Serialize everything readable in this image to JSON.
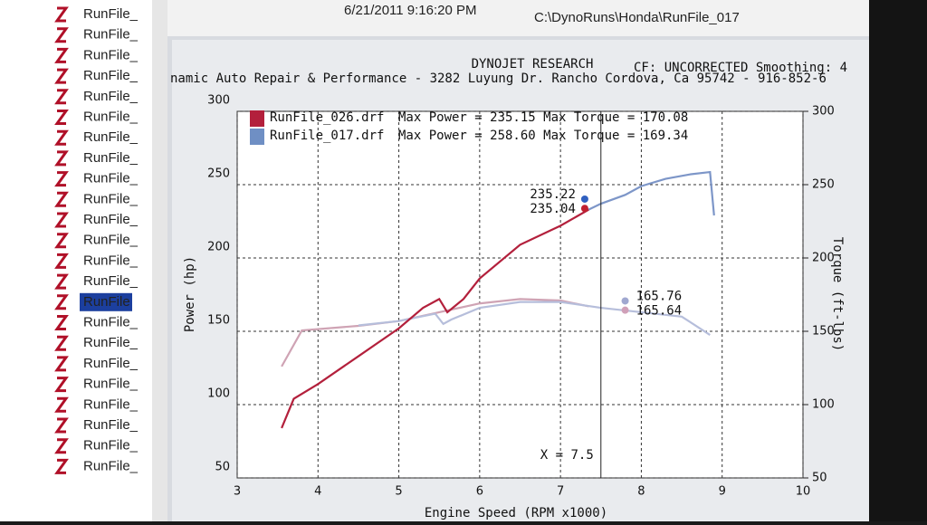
{
  "sidebar": {
    "items": [
      "RunFile_",
      "RunFile_",
      "RunFile_",
      "RunFile_",
      "RunFile_",
      "RunFile_",
      "RunFile_",
      "RunFile_",
      "RunFile_",
      "RunFile_",
      "RunFile_",
      "RunFile_",
      "RunFile_",
      "RunFile_",
      "RunFile",
      "RunFile_",
      "RunFile_",
      "RunFile_",
      "RunFile_",
      "RunFile_",
      "RunFile_",
      "RunFile_",
      "RunFile_"
    ],
    "selected": 14
  },
  "top_row": [
    "6/21/2011 9:16:20 PM",
    "C:\\DynoRuns\\Honda\\RunFile_017"
  ],
  "header": {
    "brand": "DYNOJET RESEARCH",
    "settings": "CF: UNCORRECTED  Smoothing: 4",
    "shop": "namic Auto Repair & Performance  - 3282 Luyung Dr. Rancho Cordova, Ca 95742 - 916-852-6"
  },
  "chart_data": {
    "type": "line",
    "x_label": "Engine Speed (RPM x1000)",
    "y_label": "Power (hp)",
    "y2_label": "Torque (ft-lbs)",
    "xlim": [
      3,
      10
    ],
    "xticks": [
      3,
      4,
      5,
      6,
      7,
      8,
      9,
      10
    ],
    "ylim": [
      50,
      300
    ],
    "yticks": [
      50,
      100,
      150,
      200,
      250,
      300
    ],
    "y2lim": [
      50,
      300
    ],
    "y2ticks": [
      50,
      100,
      150,
      200,
      250,
      300
    ],
    "grid": true,
    "legend": [
      {
        "name": "RunFile_026.drf",
        "detail": "Max Power = 235.15 Max Torque = 170.08",
        "color": "#b3203c"
      },
      {
        "name": "RunFile_017.drf",
        "detail": "Max Power = 258.60 Max Torque = 169.34",
        "color": "#6f8fc4"
      }
    ],
    "series": [
      {
        "name": "RunFile_026.drf power",
        "color": "#b3203c",
        "x": [
          3.55,
          3.7,
          4.0,
          4.5,
          5.0,
          5.3,
          5.5,
          5.6,
          5.8,
          6.0,
          6.5,
          7.0,
          7.35
        ],
        "values": [
          84,
          104,
          114,
          133,
          152,
          166,
          172,
          163,
          172,
          186,
          209,
          222,
          233
        ]
      },
      {
        "name": "RunFile_017.drf power",
        "color": "#7d96c8",
        "x": [
          7.35,
          7.5,
          7.8,
          8.0,
          8.3,
          8.6,
          8.85,
          8.9
        ],
        "values": [
          233,
          237,
          243,
          249,
          254,
          257,
          258.6,
          229
        ]
      },
      {
        "name": "RunFile_026.drf torque",
        "color": "#cfa3b4",
        "axis": "y2",
        "x": [
          3.55,
          3.8,
          4.5,
          5.0,
          5.5,
          6.0,
          6.5,
          7.0,
          7.35
        ],
        "values": [
          126,
          150.6,
          153.7,
          157,
          163,
          169,
          172,
          171,
          167
        ]
      },
      {
        "name": "RunFile_017.drf torque",
        "color": "#b6bedb",
        "axis": "y2",
        "x": [
          4.5,
          5.0,
          5.45,
          5.55,
          5.65,
          6.0,
          6.5,
          7.0,
          7.5,
          8.0,
          8.5,
          8.85
        ],
        "values": [
          154,
          157,
          162,
          155,
          158,
          166,
          170,
          170,
          166,
          163,
          160,
          147.5
        ]
      }
    ],
    "annotations": [
      {
        "value": 235.22,
        "x": 7.3,
        "color": "#3060c0"
      },
      {
        "value": 235.04,
        "x": 7.3,
        "color": "#c02030"
      },
      {
        "value": 165.76,
        "x": 7.8,
        "color": "#a0a8d0"
      },
      {
        "value": 165.64,
        "x": 7.8,
        "color": "#d0a0b8"
      }
    ],
    "cursor": {
      "label": "X = 7.5",
      "x": 7.5
    }
  }
}
